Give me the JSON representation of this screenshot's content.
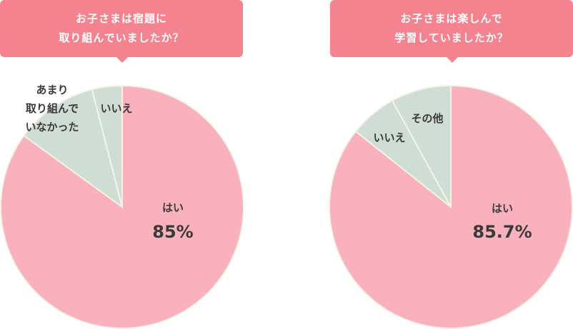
{
  "chart_data": [
    {
      "type": "pie",
      "title": "お子さまは宿題に\n取り組んでいましたか？",
      "categories": [
        "はい",
        "あまり\n取り組んで\nいなかった",
        "いいえ"
      ],
      "values": [
        85,
        11,
        4
      ],
      "value_labels": [
        "85%",
        null,
        null
      ],
      "colors": [
        "#f9b1bd",
        "#d0ddd4",
        "#d0ddd4"
      ]
    },
    {
      "type": "pie",
      "title": "お子さまは楽しんで\n学習していましたか？",
      "categories": [
        "はい",
        "いいえ",
        "その他"
      ],
      "values": [
        85.7,
        6.3,
        8
      ],
      "value_labels": [
        "85.7%",
        null,
        null
      ],
      "colors": [
        "#f9b1bd",
        "#d0ddd4",
        "#d0ddd4"
      ]
    }
  ]
}
